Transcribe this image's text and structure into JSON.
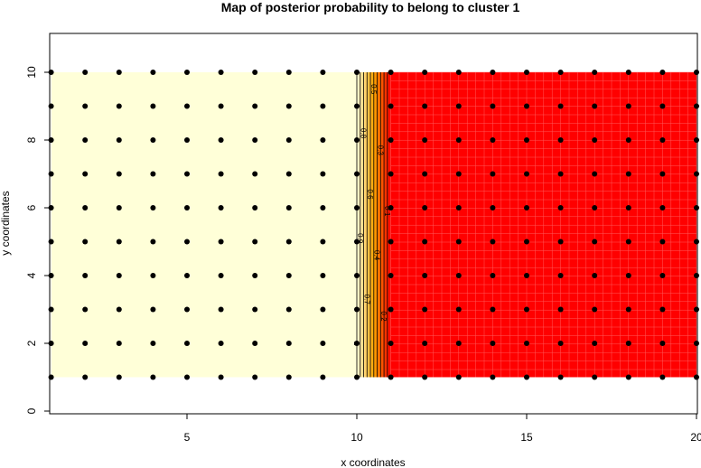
{
  "chart_data": {
    "type": "heatmap",
    "title": "Map of posterior probability to belong to cluster  1",
    "xlabel": "x coordinates",
    "ylabel": "y coordinates",
    "xlim": [
      1,
      20
    ],
    "ylim": [
      0,
      11
    ],
    "x_ticks": [
      5,
      10,
      15,
      20
    ],
    "y_ticks": [
      0,
      2,
      4,
      6,
      8,
      10
    ],
    "grid_points": {
      "x": [
        1,
        2,
        3,
        4,
        5,
        6,
        7,
        8,
        9,
        10,
        11,
        12,
        13,
        14,
        15,
        16,
        17,
        18,
        19,
        20
      ],
      "y": [
        1,
        2,
        3,
        4,
        5,
        6,
        7,
        8,
        9,
        10
      ]
    },
    "probability_field": {
      "p_equals_1_for_x_at_most": 10,
      "p_equals_0_for_x_at_least": 11
    },
    "contour_levels": [
      1,
      0.9,
      0.8,
      0.7,
      0.6,
      0.5,
      0.4,
      0.3,
      0.2,
      0.1
    ],
    "colors": {
      "high": "#FFFFD8",
      "mid": "#FFA500",
      "low": "#FF0000",
      "points": "#000000"
    }
  }
}
